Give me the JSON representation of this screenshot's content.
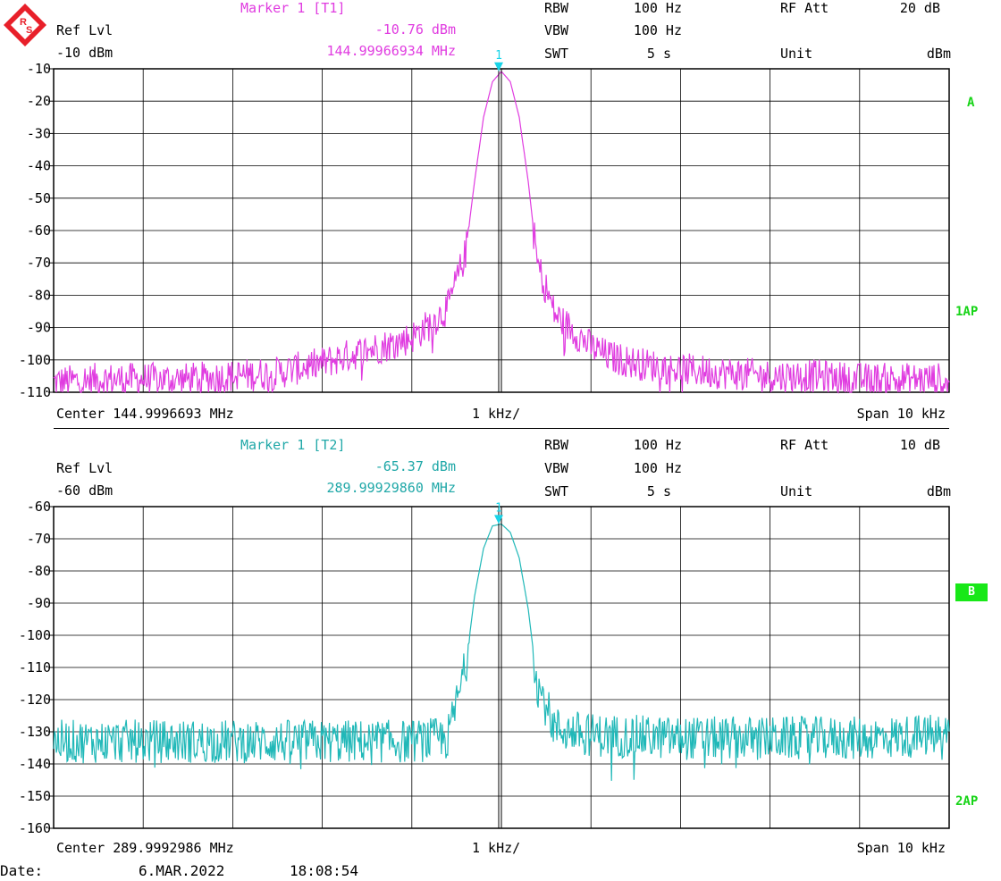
{
  "colors": {
    "trace1": "#e03ce0",
    "trace2": "#20b8b8",
    "marker": "#18d4e8",
    "status": "#18d418",
    "grid": "#000000"
  },
  "logo_icon": "rohde-schwarz-logo",
  "panel1": {
    "ref_label": "Ref Lvl",
    "ref_value": "-10 dBm",
    "marker_title": "Marker 1 [T1]",
    "marker_level": "-10.76 dBm",
    "marker_freq": "144.99966934 MHz",
    "rbw_label": "RBW",
    "rbw_value": "100 Hz",
    "vbw_label": "VBW",
    "vbw_value": "100 Hz",
    "swt_label": "SWT",
    "swt_value": "5 s",
    "att_label": "RF Att",
    "att_value": "20 dB",
    "unit_label": "Unit",
    "unit_value": "dBm",
    "trace_tag": "A",
    "mode_tag": "1AP",
    "marker_num": "1",
    "center": "Center 144.9996693 MHz",
    "div": "1 kHz/",
    "span": "Span 10 kHz"
  },
  "panel2": {
    "ref_label": "Ref Lvl",
    "ref_value": "-60 dBm",
    "marker_title": "Marker 1 [T2]",
    "marker_level": "-65.37 dBm",
    "marker_freq": "289.99929860 MHz",
    "rbw_label": "RBW",
    "rbw_value": "100 Hz",
    "vbw_label": "VBW",
    "vbw_value": "100 Hz",
    "swt_label": "SWT",
    "swt_value": "5 s",
    "att_label": "RF Att",
    "att_value": "10 dB",
    "unit_label": "Unit",
    "unit_value": "dBm",
    "trace_tag": "B",
    "mode_tag": "2AP",
    "marker_num": "1",
    "center": "Center 289.9992986 MHz",
    "div": "1 kHz/",
    "span": "Span 10 kHz"
  },
  "footer": {
    "date_label": "Date:",
    "date_value": "6.MAR.2022",
    "time_value": "18:08:54"
  },
  "chart_data": [
    {
      "type": "line",
      "title": "",
      "xlabel": "",
      "ylabel": "",
      "x_range": [
        -5,
        5
      ],
      "ylim": [
        -110,
        -10
      ],
      "yticks": [
        -10,
        -20,
        -30,
        -40,
        -50,
        -60,
        -70,
        -80,
        -90,
        -100,
        -110
      ],
      "grid": true,
      "series": [
        {
          "x": [
            -5,
            -4.5,
            -4,
            -3.5,
            -3,
            -2.5,
            -2,
            -1.5,
            -1.2,
            -1,
            -0.8,
            -0.6,
            -0.4,
            -0.3,
            -0.2,
            -0.1,
            0,
            0.1,
            0.2,
            0.3,
            0.4,
            0.6,
            0.8,
            1,
            1.2,
            1.5,
            2,
            2.5,
            3,
            3.5,
            4,
            4.5,
            5
          ],
          "values": [
            -107,
            -106,
            -106,
            -106,
            -105,
            -104,
            -101,
            -97,
            -95,
            -93,
            -89,
            -84,
            -67,
            -45,
            -25,
            -14,
            -10.8,
            -14,
            -25,
            -45,
            -70,
            -86,
            -91,
            -96,
            -99,
            -101,
            -103,
            -104,
            -105,
            -105,
            -106,
            -106,
            -106
          ]
        }
      ],
      "marker": {
        "x": -0.03,
        "y": -10.76
      }
    },
    {
      "type": "line",
      "title": "",
      "xlabel": "",
      "ylabel": "",
      "x_range": [
        -5,
        5
      ],
      "ylim": [
        -160,
        -60
      ],
      "yticks": [
        -60,
        -70,
        -80,
        -90,
        -100,
        -110,
        -120,
        -130,
        -140,
        -150,
        -160
      ],
      "grid": true,
      "series": [
        {
          "x": [
            -5,
            -4,
            -3,
            -2,
            -1,
            -0.6,
            -0.4,
            -0.3,
            -0.2,
            -0.1,
            0,
            0.1,
            0.2,
            0.3,
            0.4,
            0.6,
            1,
            2,
            3,
            4,
            5
          ],
          "values": [
            -133,
            -133,
            -133,
            -133,
            -133,
            -132,
            -110,
            -88,
            -73,
            -66,
            -65.4,
            -68,
            -76,
            -92,
            -115,
            -129,
            -131,
            -132,
            -132,
            -132,
            -131
          ]
        }
      ],
      "marker": {
        "x": -0.03,
        "y": -65.37
      }
    }
  ]
}
